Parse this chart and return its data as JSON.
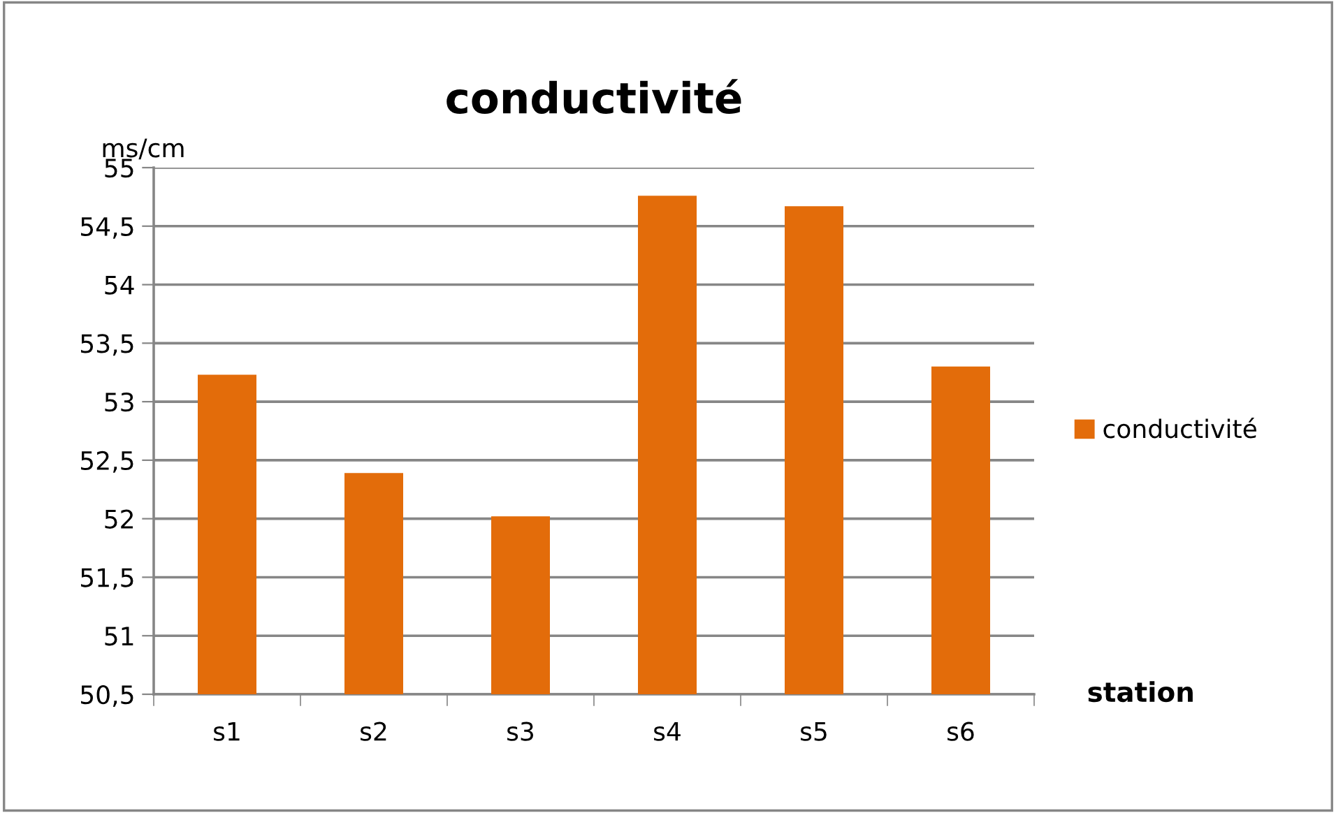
{
  "chart_data": {
    "type": "bar",
    "title": "conductivité",
    "xlabel": "station",
    "ylabel": "ms/cm",
    "categories": [
      "s1",
      "s2",
      "s3",
      "s4",
      "s5",
      "s6"
    ],
    "series": [
      {
        "name": "conductivité",
        "color": "#e36c0a",
        "values": [
          53.23,
          52.39,
          52.02,
          54.76,
          54.67,
          53.3
        ]
      }
    ],
    "ylim": [
      50.5,
      55
    ],
    "yticks": [
      {
        "value": 50.5,
        "label": "50,5"
      },
      {
        "value": 51,
        "label": "51"
      },
      {
        "value": 51.5,
        "label": "51,5"
      },
      {
        "value": 52,
        "label": "52"
      },
      {
        "value": 52.5,
        "label": "52,5"
      },
      {
        "value": 53,
        "label": "53"
      },
      {
        "value": 53.5,
        "label": "53,5"
      },
      {
        "value": 54,
        "label": "54"
      },
      {
        "value": 54.5,
        "label": "54,5"
      },
      {
        "value": 55,
        "label": "55"
      }
    ],
    "grid": "y",
    "legend": "right"
  }
}
